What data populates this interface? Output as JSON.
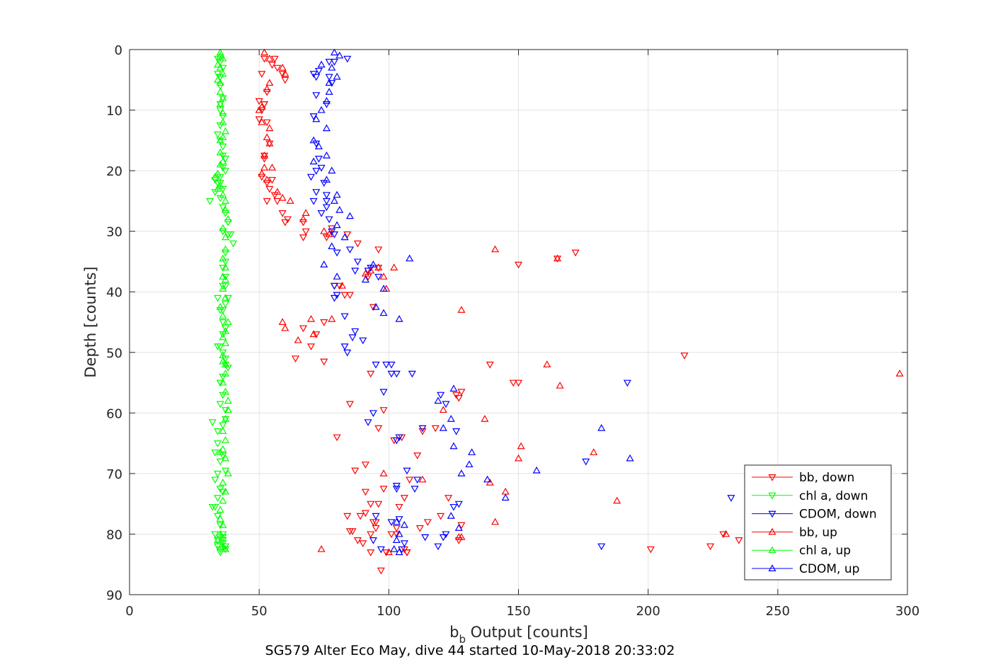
{
  "chart_data": {
    "type": "scatter",
    "xlabel_main": "b",
    "xlabel_sub": "b",
    "xlabel_rest": " Output [counts]",
    "ylabel": "Depth [counts]",
    "caption": "SG579 Alter Eco May, dive 44 started 10-May-2018 20:33:02",
    "xlim": [
      0,
      300
    ],
    "ylim": [
      90,
      0
    ],
    "y_reversed": true,
    "xticks": [
      0,
      50,
      100,
      150,
      200,
      250,
      300
    ],
    "yticks": [
      0,
      10,
      20,
      30,
      40,
      50,
      60,
      70,
      80,
      90
    ],
    "grid": true,
    "legend_position": "bottom-right",
    "series": [
      {
        "name": "bb, down",
        "color": "#ff0000",
        "marker": "triangle-down",
        "x": [
          52,
          55,
          56,
          57,
          59,
          60,
          51,
          53,
          52,
          50,
          51,
          52,
          50,
          53,
          54,
          52,
          52,
          51,
          53,
          55,
          54,
          53,
          56,
          57,
          59,
          60,
          61,
          67,
          68,
          67,
          76,
          78,
          84,
          88,
          96,
          92,
          79,
          81,
          83,
          85,
          94,
          96,
          75,
          67,
          72,
          70,
          75,
          64,
          85,
          80,
          91,
          96,
          105,
          93,
          98,
          126,
          127,
          113,
          150,
          85,
          95,
          87,
          111,
          102,
          108,
          98,
          104,
          123,
          120,
          84,
          89,
          94,
          128,
          127,
          101,
          91,
          93,
          86,
          93,
          99,
          106,
          107,
          150,
          165,
          172,
          139,
          148,
          128,
          201,
          214,
          224,
          229,
          235,
          118,
          106,
          96,
          88,
          97,
          90,
          91,
          93,
          95,
          103,
          103,
          107,
          112,
          115
        ],
        "y": [
          1.5,
          2.5,
          1.5,
          3,
          4,
          5,
          4,
          7,
          9,
          8.5,
          10,
          9,
          11.5,
          12,
          15.5,
          17.5,
          18,
          21,
          22,
          21.5,
          23,
          25,
          24,
          25,
          27,
          28.5,
          28,
          28.5,
          30,
          31,
          31,
          29.5,
          30.5,
          32,
          33,
          37.5,
          39,
          39,
          40.5,
          40.5,
          42.5,
          36,
          45,
          46,
          47,
          49,
          51.5,
          51,
          58.5,
          64,
          68.5,
          62.5,
          64,
          53.5,
          59.5,
          57,
          57.5,
          63,
          55,
          79.5,
          78,
          69.5,
          67,
          64.5,
          71,
          72.5,
          75.5,
          74,
          77,
          77,
          77,
          78,
          78.5,
          81,
          80,
          73,
          75,
          79.5,
          83,
          83,
          82.5,
          83,
          35.5,
          34.5,
          33.5,
          52,
          55,
          56.5,
          82.5,
          50.5,
          82,
          80,
          81,
          62.5,
          74,
          75,
          81,
          86,
          81.5,
          76.5,
          80,
          79,
          79,
          80,
          83,
          79,
          78
        ]
      },
      {
        "name": "chl a, down",
        "color": "#00ff00",
        "marker": "triangle-down",
        "x": [
          34,
          35,
          36,
          34,
          35,
          35,
          36,
          35,
          35,
          36,
          35,
          34,
          35,
          36,
          36,
          37,
          36,
          37,
          35,
          35,
          36,
          35,
          33,
          34,
          33,
          31,
          36,
          37,
          38,
          36,
          38,
          39,
          40,
          37,
          37,
          36,
          37,
          36,
          37,
          38,
          37,
          36,
          34,
          35,
          36,
          37,
          36,
          35,
          34,
          36,
          37,
          37,
          38,
          36,
          35,
          36,
          35,
          37,
          37,
          36,
          32,
          34,
          34,
          33,
          36,
          35,
          37,
          34,
          33,
          35,
          36,
          34,
          33,
          32,
          34,
          35,
          33,
          36,
          36,
          34,
          34,
          35,
          37,
          36,
          37,
          36,
          35
        ],
        "y": [
          1.5,
          2,
          3,
          4,
          4.5,
          6,
          8,
          9,
          10,
          11,
          12.5,
          14,
          15,
          16,
          17.5,
          18,
          19.5,
          20,
          21,
          22,
          23,
          24.5,
          21.5,
          22,
          23.5,
          25,
          26,
          27,
          28.5,
          30,
          30.5,
          30.5,
          32,
          33.5,
          35,
          36,
          37.5,
          39,
          39,
          41,
          42,
          43,
          41,
          43,
          45,
          46,
          47,
          49,
          49,
          50,
          51,
          52,
          52.5,
          54,
          55,
          57,
          58.5,
          59.5,
          61,
          62,
          61.5,
          63,
          65,
          66.5,
          67,
          68,
          69.5,
          70,
          71,
          72.5,
          73,
          74,
          75.5,
          75.5,
          77,
          78.5,
          80,
          80,
          80.5,
          81,
          82,
          82.5,
          82.5,
          81.5,
          82,
          81,
          83
        ]
      },
      {
        "name": "CDOM, down",
        "color": "#0000ff",
        "marker": "triangle-down",
        "x": [
          84,
          77,
          73,
          79,
          71,
          72,
          77,
          78,
          72,
          71,
          76,
          72,
          73,
          74,
          72,
          70,
          75,
          76,
          72,
          71,
          76,
          76,
          74,
          77,
          78,
          79,
          80,
          87,
          88,
          85,
          96,
          93,
          92,
          79,
          80,
          79,
          83,
          87,
          86,
          90,
          99,
          83,
          84,
          95,
          101,
          101,
          103,
          109,
          98,
          92,
          103,
          113,
          126,
          104,
          94,
          120,
          122,
          111,
          107,
          103,
          110,
          103,
          114,
          121,
          122,
          125,
          127,
          119,
          97,
          94,
          106,
          105,
          95,
          101,
          104,
          176,
          192,
          232,
          182
        ],
        "y": [
          1.5,
          2,
          3.5,
          2,
          4,
          4.5,
          4.5,
          5.5,
          7.5,
          11,
          9,
          15.5,
          18,
          19.5,
          20,
          21,
          22,
          24,
          23.5,
          25,
          25,
          26,
          27,
          28,
          30,
          30.5,
          33.5,
          36.5,
          35,
          33,
          37.5,
          36,
          36.5,
          39,
          40.5,
          41,
          44,
          46.5,
          47.5,
          48,
          52,
          49,
          50,
          52,
          52,
          53.5,
          53.5,
          53.5,
          56.5,
          61.5,
          64.5,
          62.5,
          63,
          64,
          60,
          57,
          58.5,
          71,
          69.5,
          72,
          72.5,
          72.5,
          80.5,
          80.5,
          80,
          75.5,
          75,
          82,
          82.5,
          81,
          81.5,
          82.5,
          77,
          78,
          77.5,
          68,
          55,
          74,
          82
        ]
      },
      {
        "name": "bb, up",
        "color": "#ff0000",
        "marker": "triangle-up",
        "x": [
          52,
          54,
          59,
          60,
          54,
          53,
          51,
          50,
          51,
          54,
          53,
          54,
          52,
          52,
          51,
          55,
          53,
          57,
          59,
          62,
          68,
          67,
          75,
          77,
          91,
          98,
          96,
          102,
          93,
          82,
          99,
          78,
          59,
          60,
          65,
          70,
          71,
          98,
          141,
          165,
          128,
          161,
          166,
          121,
          137,
          151,
          179,
          150,
          139,
          145,
          188,
          141,
          127,
          74,
          128,
          297,
          230,
          100,
          113
        ],
        "y": [
          0.5,
          1.5,
          3,
          4,
          5.5,
          6.5,
          9.5,
          10,
          12,
          13,
          14.5,
          15.5,
          17.5,
          19.5,
          20.5,
          19.5,
          21.5,
          23.5,
          24.5,
          25,
          27,
          28,
          30,
          30.5,
          37,
          37.5,
          36,
          36,
          36.5,
          39,
          39.5,
          44.5,
          45,
          46,
          48,
          44.5,
          47,
          70,
          33,
          34.5,
          43,
          52,
          55.5,
          59.5,
          61,
          65.5,
          66.5,
          67.5,
          71.5,
          73,
          74.5,
          78,
          80.5,
          82.5,
          80.5,
          53.5,
          80,
          83,
          71
        ]
      },
      {
        "name": "chl a, up",
        "color": "#00ff00",
        "marker": "triangle-up",
        "x": [
          35,
          35,
          36,
          34,
          35,
          36,
          34,
          35,
          35,
          36,
          35,
          36,
          36,
          37,
          36,
          35,
          35,
          36,
          35,
          34,
          33,
          35,
          34,
          36,
          37,
          37,
          38,
          36,
          37,
          37,
          36,
          37,
          36,
          37,
          36,
          37,
          35,
          36,
          38,
          37,
          36,
          37,
          36,
          36,
          37,
          37,
          36,
          37,
          38,
          38,
          37,
          36,
          37,
          36,
          35,
          37,
          38,
          36,
          37,
          36,
          35,
          35,
          36,
          35,
          34,
          36,
          37
        ],
        "y": [
          0.5,
          1,
          1.5,
          2.5,
          3,
          4,
          5,
          5.5,
          7,
          8,
          9,
          10.5,
          12,
          13.5,
          14.5,
          15,
          17,
          18.5,
          19,
          20.5,
          21,
          22.5,
          23,
          24,
          25,
          26.5,
          28,
          29.5,
          31,
          33,
          34.5,
          36,
          37.5,
          38,
          39.5,
          41,
          42.5,
          44,
          45,
          46.5,
          47.5,
          48.5,
          50.5,
          51.5,
          52,
          53.5,
          55,
          56.5,
          58,
          59.5,
          61,
          63,
          64.5,
          66,
          66.5,
          67.5,
          70,
          71.5,
          73,
          74.5,
          76,
          77.5,
          78.5,
          80,
          81,
          82,
          82.5
        ]
      },
      {
        "name": "CDOM, up",
        "color": "#0000ff",
        "marker": "triangle-up",
        "x": [
          79,
          81,
          74,
          78,
          80,
          77,
          77,
          76,
          74,
          72,
          76,
          71,
          73,
          76,
          71,
          78,
          76,
          80,
          79,
          81,
          85,
          80,
          83,
          78,
          75,
          80,
          108,
          94,
          91,
          98,
          95,
          98,
          104,
          125,
          119,
          124,
          121,
          125,
          132,
          131,
          128,
          138,
          145,
          157,
          182,
          193,
          124,
          127,
          103,
          104,
          103,
          102,
          104,
          106
        ],
        "y": [
          0.5,
          1,
          2.5,
          3,
          4.5,
          5.5,
          7,
          8.5,
          10,
          11.5,
          13,
          15,
          16,
          17.5,
          18.5,
          20,
          21.5,
          24,
          25,
          26.5,
          27.5,
          29,
          31,
          32.5,
          35.5,
          37.5,
          34.5,
          35.5,
          38,
          39.5,
          42.5,
          43.5,
          44.5,
          56,
          58,
          61,
          62.5,
          65.5,
          66.5,
          68.5,
          70,
          71,
          74,
          69.5,
          62.5,
          67.5,
          77,
          79,
          78,
          80,
          81,
          82.5,
          83,
          78.5
        ]
      }
    ]
  }
}
